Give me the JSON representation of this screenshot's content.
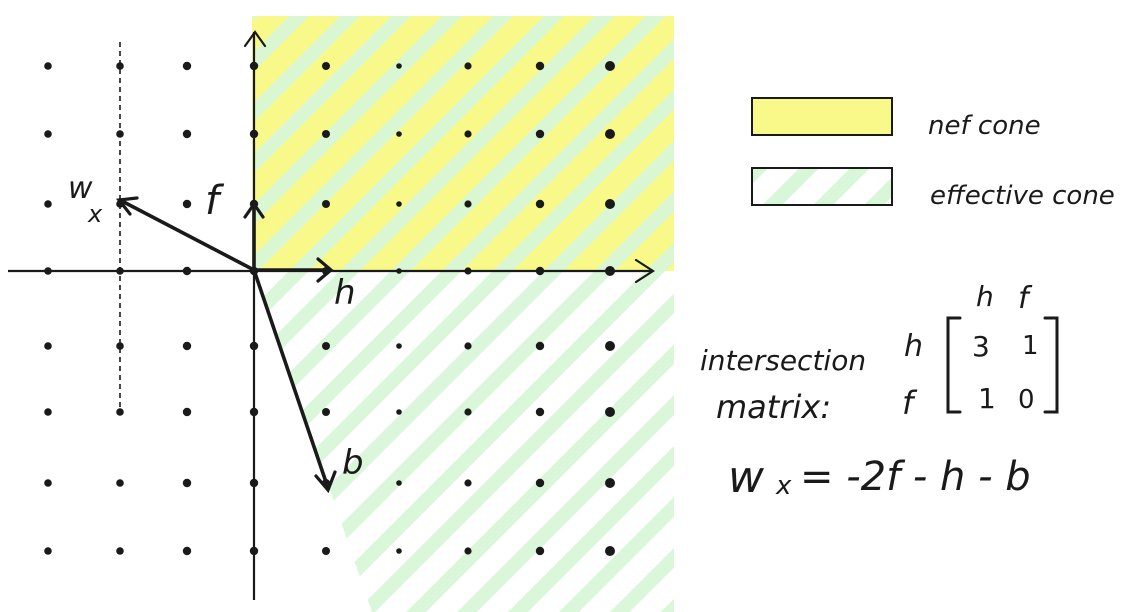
{
  "diagram": {
    "vectors": {
      "h": "h",
      "f": "f",
      "b": "b",
      "w_main": "w",
      "w_sub": "x"
    },
    "legend": {
      "nef_label": "nef cone",
      "effective_label": "effective cone"
    },
    "matrix": {
      "label_line1": "intersection",
      "label_line2": "matrix:",
      "col_headers": [
        "h",
        "f"
      ],
      "row_headers": [
        "h",
        "f"
      ],
      "values": [
        [
          "3",
          "1"
        ],
        [
          "1",
          "0"
        ]
      ]
    },
    "equation": {
      "lhs_main": "w",
      "lhs_sub": "x",
      "rhs": "= -2f - h - b"
    },
    "colors": {
      "nef_fill": "#f9f98a",
      "effective_hatch": "#d8f7d8",
      "ink": "#1a1a1a"
    }
  }
}
